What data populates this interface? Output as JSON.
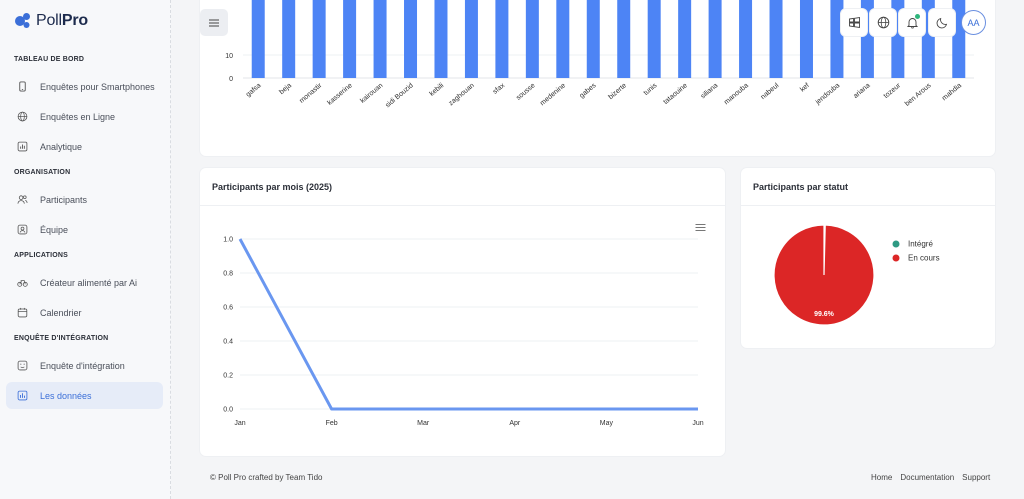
{
  "brand": {
    "name_light": "Poll",
    "name_bold": "Pro"
  },
  "sidebar": {
    "sections": [
      {
        "title": "TABLEAU DE BORD",
        "items": [
          {
            "label": "Enquêtes pour Smartphones",
            "icon": "smartphone-icon"
          },
          {
            "label": "Enquêtes en Ligne",
            "icon": "globe-icon"
          },
          {
            "label": "Analytique",
            "icon": "chart-icon"
          }
        ]
      },
      {
        "title": "ORGANISATION",
        "items": [
          {
            "label": "Participants",
            "icon": "users-icon"
          },
          {
            "label": "Équipe",
            "icon": "user-circle-icon"
          }
        ]
      },
      {
        "title": "APPLICATIONS",
        "items": [
          {
            "label": "Créateur alimenté par Ai",
            "icon": "bicycle-icon"
          },
          {
            "label": "Calendrier",
            "icon": "calendar-icon"
          }
        ]
      },
      {
        "title": "ENQUÊTE D'INTÉGRATION",
        "items": [
          {
            "label": "Enquête d'intégration",
            "icon": "form-icon"
          },
          {
            "label": "Les données",
            "icon": "data-icon",
            "active": true
          }
        ]
      }
    ]
  },
  "header": {
    "avatar_initials": "AA"
  },
  "colors": {
    "accent": "#3b6fd8",
    "bar": "#4d84f5",
    "line": "#6a97f0",
    "pie_en_cours": "#dc2626",
    "pie_integre": "#2e9a83"
  },
  "bar_chart": {
    "chart_data": {
      "type": "bar",
      "categories": [
        "gafsa",
        "beja",
        "monastir",
        "kasserine",
        "kairouan",
        "sidi Bouzid",
        "kebili",
        "zaghouan",
        "sfax",
        "sousse",
        "medenine",
        "gabes",
        "bizerte",
        "tunis",
        "tataouine",
        "siliana",
        "manouba",
        "nabeul",
        "kef",
        "jendouba",
        "ariana",
        "tozeur",
        "ben Arous",
        "mahdia"
      ],
      "y_ticks": [
        "10",
        "0"
      ]
    }
  },
  "line_card": {
    "title": "Participants par mois (2025)",
    "chart_data": {
      "type": "line",
      "categories": [
        "Jan",
        "Feb",
        "Mar",
        "Apr",
        "May",
        "Jun"
      ],
      "values": [
        1.0,
        0.0,
        0.0,
        0.0,
        0.0,
        0.0
      ],
      "y_ticks": [
        "1.0",
        "0.8",
        "0.6",
        "0.4",
        "0.2",
        "0.0"
      ],
      "ylim": [
        0,
        1
      ]
    }
  },
  "pie_card": {
    "title": "Participants par statut",
    "chart_data": {
      "type": "pie",
      "slices": [
        {
          "name": "Intégré",
          "value": 0.4,
          "color": "#2e9a83"
        },
        {
          "name": "En cours",
          "value": 99.6,
          "color": "#dc2626"
        }
      ],
      "data_label": "99.6%",
      "legend_position": "right"
    }
  },
  "footer": {
    "credit": "© Poll Pro crafted by Team Tido",
    "links": [
      "Home",
      "Documentation",
      "Support"
    ]
  }
}
